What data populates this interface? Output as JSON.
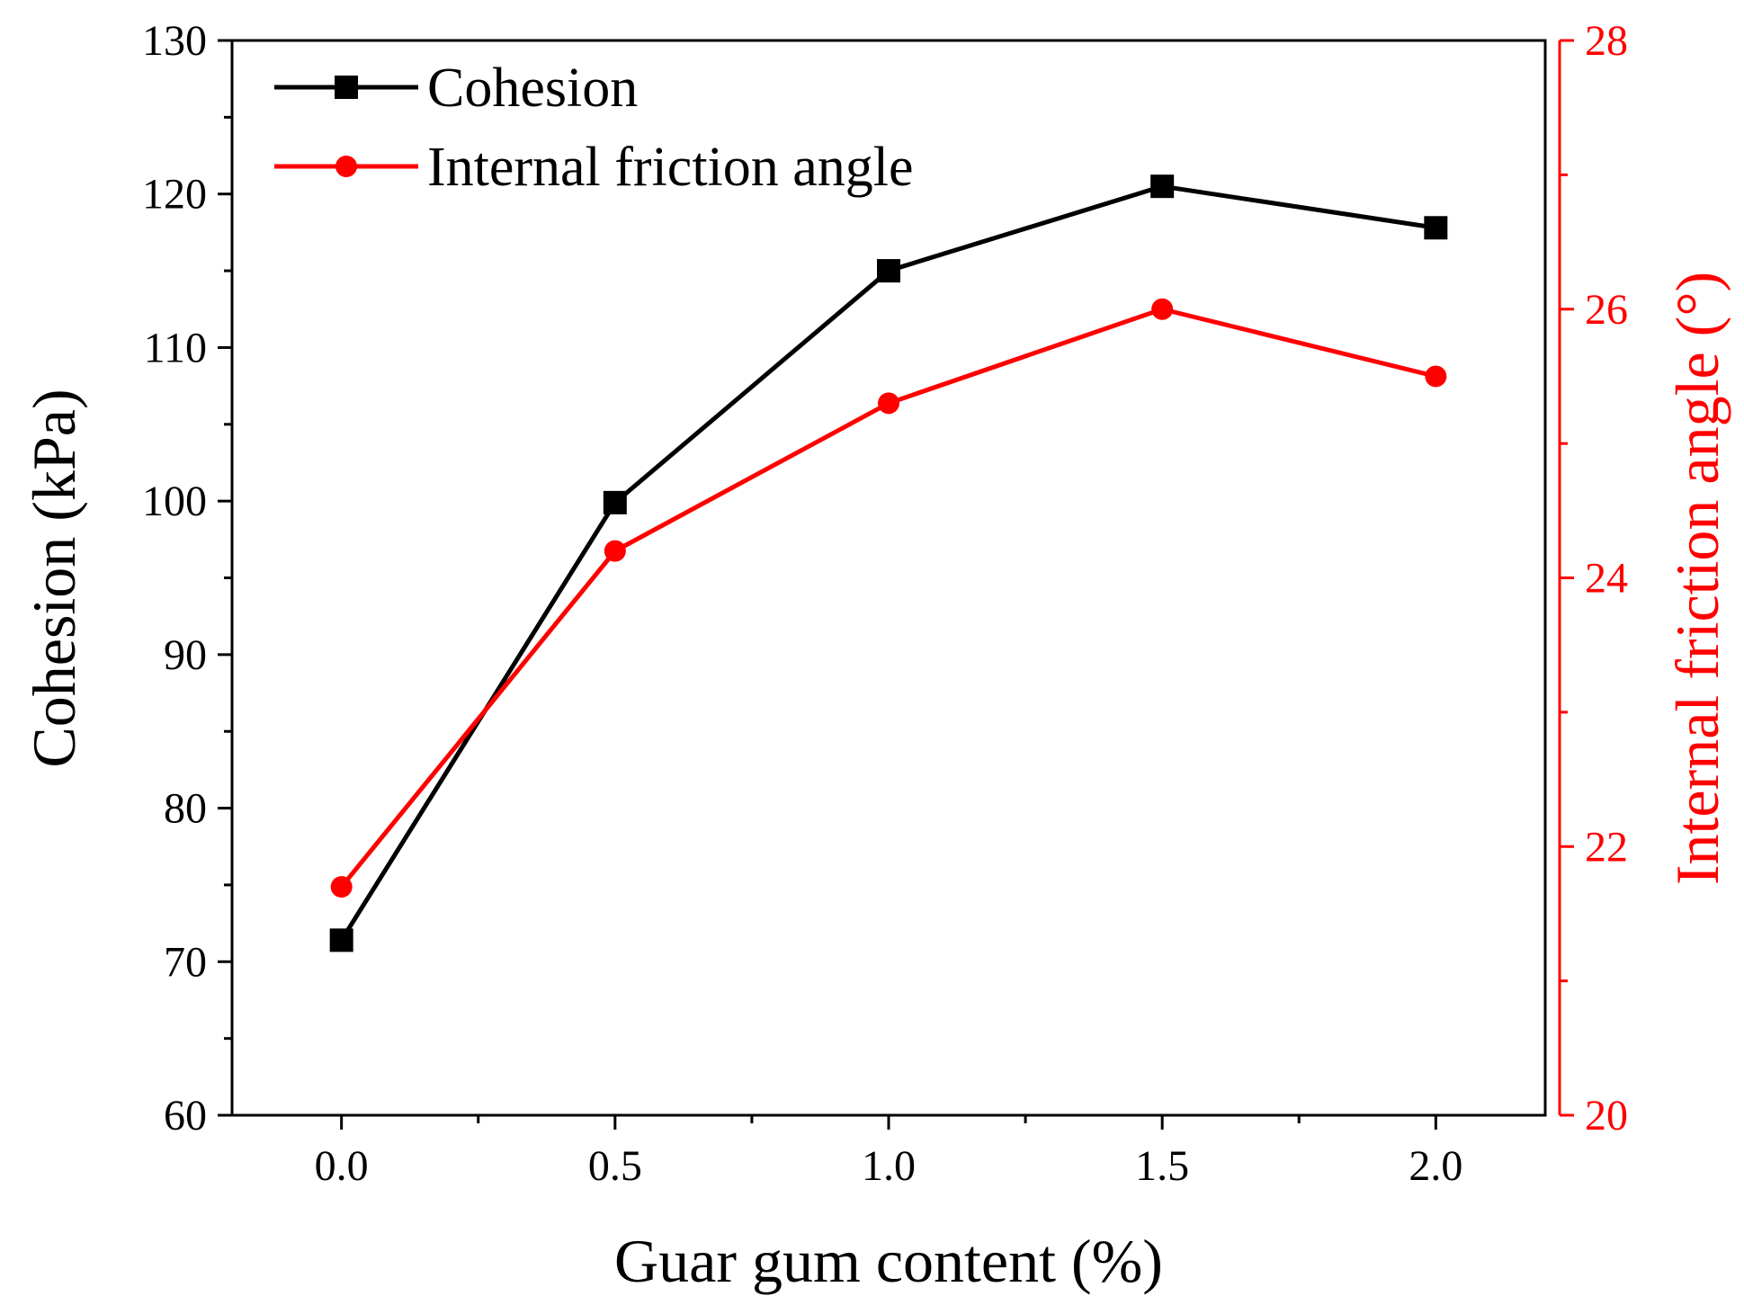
{
  "chart_data": {
    "type": "line",
    "xlabel": "Guar gum content (%)",
    "ylabel": "Cohesion (kPa)",
    "y2label": "Internal friction angle (°)",
    "xlim": [
      -0.2,
      2.2
    ],
    "ylim": [
      60,
      130
    ],
    "y2lim": [
      20,
      28
    ],
    "x_ticks": [
      "0.0",
      "0.5",
      "1.0",
      "1.5",
      "2.0"
    ],
    "y_ticks": [
      "60",
      "70",
      "80",
      "90",
      "100",
      "110",
      "120",
      "130"
    ],
    "y2_ticks": [
      "20",
      "22",
      "24",
      "26",
      "28"
    ],
    "x": [
      0.0,
      0.5,
      1.0,
      1.5,
      2.0
    ],
    "series": [
      {
        "name": "Cohesion",
        "axis": "left",
        "values": [
          71.4,
          99.9,
          115.0,
          120.5,
          117.8
        ],
        "color": "#000000",
        "marker": "square"
      },
      {
        "name": "Internal friction angle",
        "axis": "right",
        "values": [
          21.7,
          24.2,
          25.3,
          26.0,
          25.5
        ],
        "color": "#ff0000",
        "marker": "circle"
      }
    ],
    "legend_position": "top-left",
    "grid": false,
    "colors": {
      "left_axis": "#000000",
      "right_axis": "#ff0000"
    }
  }
}
